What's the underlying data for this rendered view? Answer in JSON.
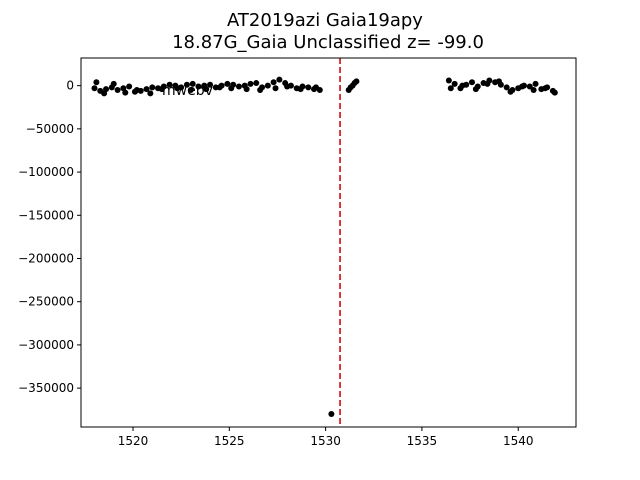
{
  "chart_data": {
    "type": "scatter",
    "title_line1": "AT2019azi  Gaia19apy",
    "title_line2": "18.87G_Gaia Unclassified z= -99.0",
    "xlabel": "",
    "ylabel": "",
    "xlim": [
      1517.3,
      1543.0
    ],
    "ylim": [
      -395000,
      32000
    ],
    "x_ticks": [
      1520,
      1525,
      1530,
      1535,
      1540
    ],
    "x_tick_labels": [
      "1520",
      "1525",
      "1530",
      "1535",
      "1540"
    ],
    "y_ticks": [
      0,
      -50000,
      -100000,
      -150000,
      -200000,
      -250000,
      -300000,
      -350000
    ],
    "y_tick_labels": [
      "0",
      "−50000",
      "−100000",
      "−150000",
      "−200000",
      "−250000",
      "−300000",
      "−350000"
    ],
    "annotation_text": "mwebv",
    "marker_color": "#000000",
    "vline": {
      "x": 1530.75,
      "color": "#d62728",
      "style": "dashed"
    },
    "series": [
      {
        "values_x": [
          1518.0,
          1518.3,
          1518.6,
          1518.9,
          1519.2,
          1519.5,
          1519.8,
          1520.1,
          1520.4,
          1520.7,
          1521.0,
          1521.3,
          1521.6,
          1521.9,
          1522.2,
          1522.5,
          1522.8,
          1523.1,
          1523.4,
          1523.7,
          1524.0,
          1524.3,
          1524.6,
          1524.9,
          1525.2,
          1525.5,
          1525.8,
          1526.1,
          1526.4,
          1526.7,
          1527.0,
          1527.3,
          1527.6,
          1527.9,
          1528.2,
          1528.5,
          1528.8,
          1529.1,
          1529.4,
          1529.7,
          1518.1,
          1518.5,
          1519.0,
          1519.6,
          1520.2,
          1520.9,
          1521.5,
          1522.3,
          1523.0,
          1523.8,
          1524.5,
          1525.1,
          1525.9,
          1526.6,
          1527.4,
          1528.0,
          1528.7,
          1529.5,
          1530.3,
          1531.2,
          1531.3,
          1531.4,
          1531.5,
          1531.6,
          1536.4,
          1536.7,
          1537.0,
          1537.3,
          1537.6,
          1537.9,
          1538.2,
          1538.5,
          1538.8,
          1539.1,
          1539.4,
          1539.7,
          1540.0,
          1540.3,
          1540.6,
          1540.9,
          1541.2,
          1541.5,
          1541.8,
          1536.5,
          1537.1,
          1537.8,
          1538.4,
          1539.0,
          1539.6,
          1540.2,
          1540.8,
          1541.4,
          1541.9
        ],
        "values_y": [
          -3000,
          -6000,
          -4000,
          -2000,
          -5000,
          -3000,
          -1000,
          -7000,
          -6000,
          -4000,
          -2000,
          -3000,
          -1000,
          1000,
          0,
          -2000,
          1000,
          2000,
          -1000,
          0,
          1000,
          -2000,
          0,
          2000,
          1000,
          -1000,
          0,
          2000,
          3000,
          -2000,
          0,
          4000,
          7000,
          3000,
          0,
          -3000,
          -1000,
          -2000,
          -4000,
          -5000,
          4000,
          -9000,
          2000,
          -8000,
          -5000,
          -9000,
          -4000,
          -3000,
          -5000,
          -4000,
          -2000,
          -3000,
          -4000,
          -5000,
          -3000,
          -1000,
          -4000,
          -2000,
          -380000,
          -5000,
          -2000,
          0,
          3000,
          5000,
          6000,
          2000,
          -3000,
          1000,
          4000,
          -1000,
          3000,
          6000,
          4000,
          1000,
          -2000,
          -5000,
          -3000,
          0,
          -1000,
          2000,
          -4000,
          -2000,
          -6000,
          -3000,
          0,
          -4000,
          2000,
          5000,
          -7000,
          -1000,
          -5000,
          -3000,
          -8000
        ]
      }
    ]
  }
}
